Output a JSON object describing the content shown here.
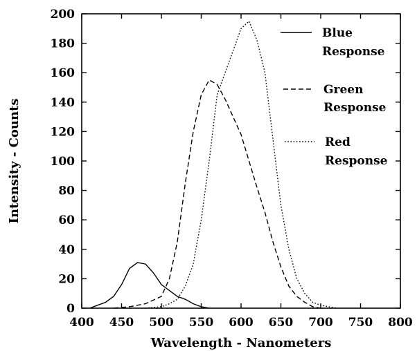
{
  "chart_data": {
    "type": "line",
    "title": "",
    "xlabel": "Wavelength - Nanometers",
    "ylabel": "Intensity - Counts",
    "xlim": [
      400,
      800
    ],
    "ylim": [
      0,
      200
    ],
    "xticks": [
      "400",
      "450",
      "500",
      "550",
      "600",
      "650",
      "700",
      "750",
      "800"
    ],
    "yticks": [
      "0",
      "20",
      "40",
      "60",
      "80",
      "100",
      "120",
      "140",
      "160",
      "180",
      "200"
    ],
    "grid": false,
    "legend_position": "top-right",
    "series": [
      {
        "name": "Blue Response",
        "legend_lines": [
          "Blue",
          "Response"
        ],
        "style": "solid",
        "x": [
          410,
          420,
          430,
          440,
          450,
          460,
          470,
          480,
          490,
          500,
          510,
          520,
          530,
          540,
          550,
          560
        ],
        "y": [
          0,
          2,
          4,
          8,
          16,
          27,
          31,
          30,
          24,
          16,
          12,
          8,
          6,
          3,
          1,
          0
        ]
      },
      {
        "name": "Green Response",
        "legend_lines": [
          "Green",
          "Response"
        ],
        "style": "dashed",
        "x": [
          440,
          460,
          480,
          500,
          510,
          520,
          530,
          540,
          550,
          560,
          570,
          580,
          590,
          600,
          610,
          620,
          630,
          640,
          650,
          660,
          670,
          680,
          690,
          700
        ],
        "y": [
          0,
          1,
          3,
          8,
          20,
          45,
          85,
          120,
          145,
          155,
          152,
          142,
          130,
          118,
          100,
          82,
          65,
          45,
          28,
          15,
          8,
          4,
          1,
          0
        ]
      },
      {
        "name": "Red Response",
        "legend_lines": [
          "Red",
          "Response"
        ],
        "style": "dotted",
        "x": [
          480,
          500,
          510,
          520,
          530,
          540,
          550,
          560,
          570,
          580,
          590,
          600,
          610,
          620,
          630,
          640,
          650,
          660,
          670,
          680,
          690,
          700,
          710,
          720
        ],
        "y": [
          0,
          1,
          3,
          6,
          15,
          30,
          60,
          100,
          145,
          160,
          175,
          190,
          195,
          182,
          160,
          115,
          70,
          40,
          20,
          10,
          4,
          2,
          1,
          0
        ]
      }
    ]
  }
}
